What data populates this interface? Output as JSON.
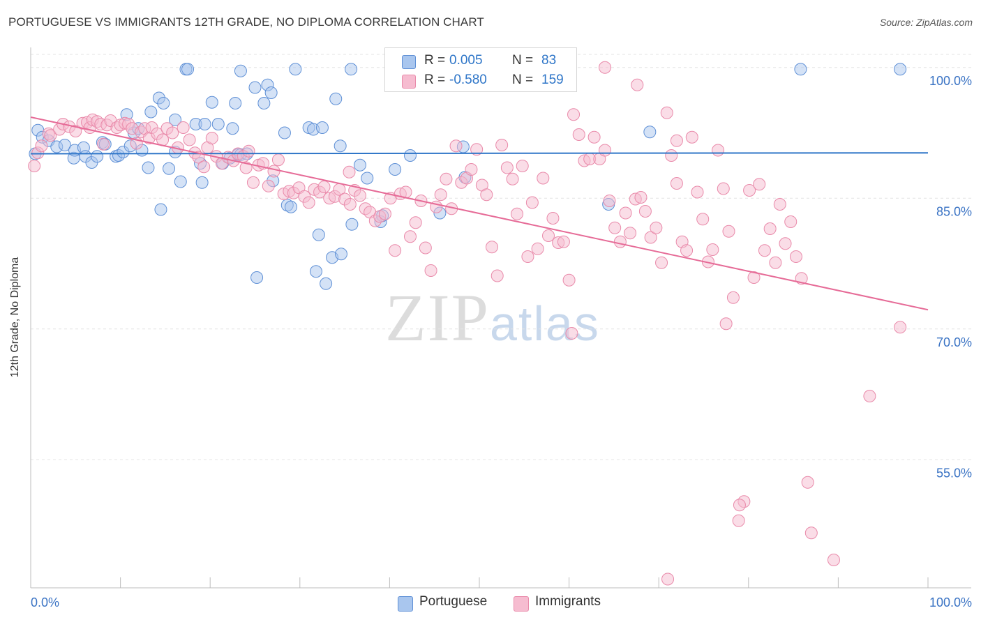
{
  "title": "PORTUGUESE VS IMMIGRANTS 12TH GRADE, NO DIPLOMA CORRELATION CHART",
  "source": "Source: ZipAtlas.com",
  "watermark": {
    "zip": "ZIP",
    "atlas": "atlas"
  },
  "colors": {
    "portuguese_fill": "#a9c6ee",
    "portuguese_stroke": "#5f90d6",
    "portuguese_line": "#2f76c8",
    "immigrants_fill": "#f6bcd0",
    "immigrants_stroke": "#e98aaa",
    "immigrants_line": "#e66b97",
    "tick_label": "#3a73c4"
  },
  "legend": {
    "portuguese": {
      "r_label": "R =",
      "r_value": "0.005",
      "n_label": "N =",
      "n_value": "83"
    },
    "immigrants": {
      "r_label": "R =",
      "r_value": "-0.580",
      "n_label": "N =",
      "n_value": "159"
    }
  },
  "bottom_legend": {
    "portuguese": "Portuguese",
    "immigrants": "Immigrants"
  },
  "chart_data": {
    "type": "scatter",
    "title": "PORTUGUESE VS IMMIGRANTS 12TH GRADE, NO DIPLOMA CORRELATION CHART",
    "xlabel": "",
    "ylabel": "12th Grade, No Diploma",
    "xlim": [
      0,
      100
    ],
    "ylim": [
      41.5,
      101.5
    ],
    "x_tick_labels": [
      "0.0%",
      "100.0%"
    ],
    "y_ticks": [
      55,
      70,
      85,
      100
    ],
    "y_tick_labels": [
      "55.0%",
      "70.0%",
      "85.0%",
      "100.0%"
    ],
    "grid": true,
    "legend_position": "top-center",
    "series": [
      {
        "name": "Portuguese",
        "trend": {
          "x": [
            0,
            100
          ],
          "y": [
            90.1,
            90.2
          ]
        },
        "points": [
          [
            0.5,
            90.1
          ],
          [
            0.8,
            92.8
          ],
          [
            1.3,
            92.0
          ],
          [
            2.0,
            91.6
          ],
          [
            2.9,
            90.9
          ],
          [
            3.8,
            91.1
          ],
          [
            4.8,
            89.6
          ],
          [
            4.9,
            90.5
          ],
          [
            5.9,
            90.8
          ],
          [
            6.1,
            89.8
          ],
          [
            6.8,
            89.1
          ],
          [
            7.4,
            89.8
          ],
          [
            8.0,
            91.4
          ],
          [
            8.3,
            91.2
          ],
          [
            9.5,
            89.8
          ],
          [
            9.8,
            89.9
          ],
          [
            10.3,
            90.3
          ],
          [
            10.7,
            94.6
          ],
          [
            11.1,
            91.0
          ],
          [
            11.5,
            92.5
          ],
          [
            12.4,
            90.5
          ],
          [
            13.1,
            88.5
          ],
          [
            13.4,
            94.9
          ],
          [
            14.3,
            96.5
          ],
          [
            14.5,
            83.7
          ],
          [
            14.8,
            95.9
          ],
          [
            15.4,
            88.4
          ],
          [
            16.1,
            90.3
          ],
          [
            16.1,
            94.0
          ],
          [
            16.7,
            86.9
          ],
          [
            17.3,
            99.8
          ],
          [
            17.5,
            99.8
          ],
          [
            18.4,
            93.5
          ],
          [
            18.9,
            89.0
          ],
          [
            19.1,
            86.8
          ],
          [
            19.4,
            93.5
          ],
          [
            20.2,
            96.0
          ],
          [
            20.9,
            93.5
          ],
          [
            21.4,
            89.0
          ],
          [
            22.2,
            89.6
          ],
          [
            22.8,
            95.9
          ],
          [
            23.1,
            90.0
          ],
          [
            23.4,
            99.6
          ],
          [
            23.4,
            90.0
          ],
          [
            24.1,
            90.1
          ],
          [
            25.0,
            97.7
          ],
          [
            25.2,
            75.9
          ],
          [
            26.0,
            95.9
          ],
          [
            26.4,
            98.0
          ],
          [
            26.8,
            97.1
          ],
          [
            28.3,
            92.5
          ],
          [
            28.6,
            84.2
          ],
          [
            29.0,
            84.0
          ],
          [
            29.5,
            99.8
          ],
          [
            31.0,
            93.1
          ],
          [
            31.5,
            92.9
          ],
          [
            31.8,
            76.6
          ],
          [
            32.1,
            80.8
          ],
          [
            32.5,
            93.1
          ],
          [
            32.9,
            75.2
          ],
          [
            33.6,
            78.2
          ],
          [
            34.0,
            96.4
          ],
          [
            34.6,
            78.6
          ],
          [
            35.7,
            99.8
          ],
          [
            35.8,
            82.0
          ],
          [
            36.7,
            88.8
          ],
          [
            37.5,
            87.3
          ],
          [
            39.0,
            82.3
          ],
          [
            39.2,
            83.0
          ],
          [
            40.6,
            88.3
          ],
          [
            42.3,
            89.9
          ],
          [
            43.5,
            100.2
          ],
          [
            45.6,
            83.3
          ],
          [
            48.2,
            90.9
          ],
          [
            48.4,
            87.4
          ],
          [
            64.4,
            84.3
          ],
          [
            69.0,
            92.6
          ],
          [
            85.8,
            99.8
          ],
          [
            96.9,
            99.8
          ],
          [
            34.5,
            91.0
          ],
          [
            12.0,
            93.0
          ],
          [
            27.0,
            87.0
          ],
          [
            22.5,
            93.0
          ]
        ]
      },
      {
        "name": "Immigrants",
        "trend": {
          "x": [
            0,
            100
          ],
          "y": [
            94.3,
            72.2
          ]
        },
        "points": [
          [
            0.4,
            88.7
          ],
          [
            0.8,
            90.2
          ],
          [
            1.2,
            91.0
          ],
          [
            2.0,
            92.4
          ],
          [
            2.2,
            92.2
          ],
          [
            3.2,
            92.9
          ],
          [
            3.6,
            93.5
          ],
          [
            4.3,
            93.2
          ],
          [
            5.0,
            92.7
          ],
          [
            5.8,
            93.6
          ],
          [
            6.3,
            93.7
          ],
          [
            6.6,
            93.1
          ],
          [
            6.9,
            94.0
          ],
          [
            7.4,
            93.8
          ],
          [
            7.8,
            93.5
          ],
          [
            8.1,
            91.2
          ],
          [
            8.5,
            93.4
          ],
          [
            8.9,
            93.9
          ],
          [
            9.6,
            93.1
          ],
          [
            10.0,
            93.4
          ],
          [
            10.5,
            93.6
          ],
          [
            10.9,
            93.5
          ],
          [
            11.3,
            93.0
          ],
          [
            11.8,
            91.3
          ],
          [
            12.3,
            92.6
          ],
          [
            12.7,
            93.0
          ],
          [
            13.2,
            91.9
          ],
          [
            13.5,
            93.1
          ],
          [
            14.1,
            92.4
          ],
          [
            14.7,
            91.7
          ],
          [
            15.2,
            93.0
          ],
          [
            15.8,
            92.5
          ],
          [
            16.4,
            90.8
          ],
          [
            17.0,
            93.1
          ],
          [
            17.7,
            91.7
          ],
          [
            18.3,
            90.2
          ],
          [
            18.7,
            89.7
          ],
          [
            19.3,
            88.6
          ],
          [
            19.7,
            90.8
          ],
          [
            20.2,
            91.9
          ],
          [
            20.7,
            89.8
          ],
          [
            21.3,
            89.0
          ],
          [
            22.0,
            89.7
          ],
          [
            22.6,
            89.3
          ],
          [
            23.1,
            90.1
          ],
          [
            23.7,
            89.8
          ],
          [
            24.3,
            90.4
          ],
          [
            24.8,
            86.8
          ],
          [
            25.4,
            88.8
          ],
          [
            25.9,
            89.0
          ],
          [
            26.5,
            86.4
          ],
          [
            27.1,
            88.1
          ],
          [
            27.6,
            89.4
          ],
          [
            28.2,
            85.5
          ],
          [
            28.8,
            85.8
          ],
          [
            29.3,
            85.6
          ],
          [
            29.9,
            86.2
          ],
          [
            30.5,
            85.2
          ],
          [
            31.0,
            84.5
          ],
          [
            31.6,
            86.0
          ],
          [
            32.2,
            85.7
          ],
          [
            32.7,
            86.3
          ],
          [
            33.3,
            85.0
          ],
          [
            33.9,
            85.2
          ],
          [
            34.4,
            86.0
          ],
          [
            35.0,
            84.9
          ],
          [
            35.6,
            84.3
          ],
          [
            36.1,
            85.9
          ],
          [
            36.7,
            85.3
          ],
          [
            37.3,
            83.8
          ],
          [
            37.8,
            83.4
          ],
          [
            38.4,
            82.4
          ],
          [
            38.9,
            82.9
          ],
          [
            39.5,
            83.2
          ],
          [
            40.1,
            85.0
          ],
          [
            40.6,
            79.0
          ],
          [
            41.2,
            85.5
          ],
          [
            41.8,
            85.7
          ],
          [
            42.3,
            80.6
          ],
          [
            42.9,
            82.2
          ],
          [
            43.5,
            84.7
          ],
          [
            44.0,
            79.3
          ],
          [
            44.6,
            76.7
          ],
          [
            45.2,
            84.0
          ],
          [
            45.7,
            85.4
          ],
          [
            46.3,
            87.2
          ],
          [
            46.9,
            83.8
          ],
          [
            47.4,
            91.0
          ],
          [
            48.0,
            86.8
          ],
          [
            48.6,
            87.3
          ],
          [
            49.1,
            88.3
          ],
          [
            49.7,
            90.6
          ],
          [
            50.3,
            86.5
          ],
          [
            50.8,
            85.4
          ],
          [
            51.4,
            79.4
          ],
          [
            52.0,
            76.1
          ],
          [
            52.5,
            91.1
          ],
          [
            53.1,
            88.5
          ],
          [
            53.7,
            87.2
          ],
          [
            54.2,
            83.2
          ],
          [
            54.8,
            88.7
          ],
          [
            55.4,
            78.3
          ],
          [
            55.9,
            84.5
          ],
          [
            56.5,
            79.2
          ],
          [
            57.1,
            87.3
          ],
          [
            57.7,
            80.7
          ],
          [
            58.2,
            82.7
          ],
          [
            58.8,
            79.9
          ],
          [
            59.4,
            80.0
          ],
          [
            60.0,
            75.6
          ],
          [
            60.5,
            94.6
          ],
          [
            61.1,
            92.3
          ],
          [
            61.7,
            89.3
          ],
          [
            62.3,
            89.5
          ],
          [
            62.8,
            92.0
          ],
          [
            63.4,
            89.5
          ],
          [
            64.0,
            90.5
          ],
          [
            64.5,
            84.7
          ],
          [
            65.1,
            81.6
          ],
          [
            65.7,
            80.0
          ],
          [
            66.3,
            83.3
          ],
          [
            66.8,
            81.0
          ],
          [
            67.4,
            84.9
          ],
          [
            68.0,
            85.1
          ],
          [
            68.5,
            83.5
          ],
          [
            69.1,
            80.5
          ],
          [
            69.7,
            81.6
          ],
          [
            70.3,
            77.6
          ],
          [
            70.9,
            94.8
          ],
          [
            71.4,
            89.9
          ],
          [
            72.0,
            86.7
          ],
          [
            72.6,
            80.0
          ],
          [
            73.1,
            79.0
          ],
          [
            73.7,
            92.0
          ],
          [
            74.3,
            85.7
          ],
          [
            74.9,
            82.6
          ],
          [
            75.5,
            77.7
          ],
          [
            76.0,
            79.1
          ],
          [
            76.6,
            90.5
          ],
          [
            77.2,
            86.1
          ],
          [
            77.8,
            81.2
          ],
          [
            78.3,
            73.6
          ],
          [
            78.9,
            48.0
          ],
          [
            79.5,
            50.2
          ],
          [
            80.1,
            85.9
          ],
          [
            80.6,
            75.9
          ],
          [
            81.2,
            86.6
          ],
          [
            81.8,
            79.0
          ],
          [
            82.4,
            81.5
          ],
          [
            83.0,
            77.6
          ],
          [
            83.5,
            84.3
          ],
          [
            84.1,
            79.8
          ],
          [
            84.7,
            82.3
          ],
          [
            85.3,
            78.3
          ],
          [
            85.9,
            75.8
          ],
          [
            86.6,
            52.4
          ],
          [
            87.0,
            46.6
          ],
          [
            89.5,
            43.5
          ],
          [
            93.5,
            62.3
          ],
          [
            96.9,
            70.2
          ],
          [
            71.0,
            41.3
          ],
          [
            64.0,
            100.0
          ],
          [
            67.6,
            98.0
          ],
          [
            60.3,
            69.5
          ],
          [
            72.0,
            91.6
          ],
          [
            79.0,
            49.8
          ],
          [
            35.5,
            88.0
          ],
          [
            24.0,
            88.5
          ],
          [
            77.5,
            70.6
          ]
        ]
      }
    ]
  }
}
